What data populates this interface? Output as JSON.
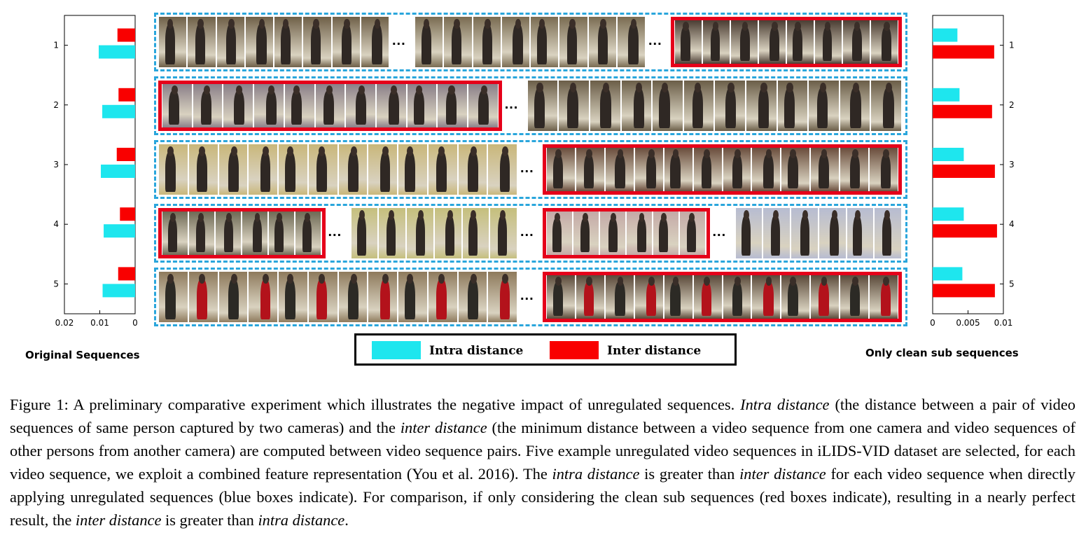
{
  "colors": {
    "intra": "#1ee6ee",
    "inter": "#f90000",
    "clean_box": "#e5001a",
    "sequence_box": "#2aa6dc"
  },
  "chart_data": [
    {
      "type": "bar",
      "orientation": "horizontal",
      "title": "Original Sequences",
      "xlim": [
        0.02,
        0
      ],
      "x_reversed": true,
      "xticks": [
        "0.02",
        "0.01",
        "0"
      ],
      "categories": [
        "1",
        "2",
        "3",
        "4",
        "5"
      ],
      "series": [
        {
          "name": "Inter distance",
          "values": [
            0.005,
            0.0047,
            0.0052,
            0.0043,
            0.0048
          ]
        },
        {
          "name": "Intra distance",
          "values": [
            0.0103,
            0.0093,
            0.0097,
            0.0089,
            0.0092
          ]
        }
      ],
      "grid": false
    },
    {
      "type": "bar",
      "orientation": "horizontal",
      "title": "Only clean sub sequences",
      "xlim": [
        0,
        0.01
      ],
      "xticks": [
        "0",
        "0.005",
        "0.01"
      ],
      "categories": [
        "1",
        "2",
        "3",
        "4",
        "5"
      ],
      "series": [
        {
          "name": "Intra distance",
          "values": [
            0.0035,
            0.0038,
            0.0044,
            0.0044,
            0.0042
          ]
        },
        {
          "name": "Inter distance",
          "values": [
            0.0087,
            0.0084,
            0.0088,
            0.0091,
            0.0088
          ]
        }
      ],
      "grid": false
    }
  ],
  "legend": {
    "intra_label": "Intra distance",
    "inter_label": "Inter distance"
  },
  "ellipsis": "...",
  "sequences": [
    {
      "segments": [
        {
          "clean": false,
          "frames": 8,
          "tone": "#6f6048"
        },
        {
          "clean": false,
          "frames": 8,
          "tone": "#7a6c52"
        },
        {
          "clean": true,
          "frames": 8,
          "tone": "#4b3d33"
        }
      ]
    },
    {
      "segments": [
        {
          "clean": true,
          "frames": 11,
          "tone": "#8a7f88"
        },
        {
          "clean": false,
          "frames": 12,
          "tone": "#6b5e48"
        }
      ]
    },
    {
      "segments": [
        {
          "clean": false,
          "frames": 12,
          "tone": "#c9b77a"
        },
        {
          "clean": true,
          "frames": 12,
          "tone": "#6a4d3c"
        }
      ]
    },
    {
      "segments": [
        {
          "clean": true,
          "frames": 6,
          "tone": "#6f6a55"
        },
        {
          "clean": false,
          "frames": 6,
          "tone": "#c5bf7c"
        },
        {
          "clean": true,
          "frames": 6,
          "tone": "#c4a9a6"
        },
        {
          "clean": false,
          "frames": 6,
          "tone": "#b7bcd1"
        }
      ]
    },
    {
      "segments": [
        {
          "clean": false,
          "frames": 12,
          "tone": "#8e7a5c"
        },
        {
          "clean": true,
          "frames": 12,
          "tone": "#5b4a3a"
        }
      ]
    }
  ],
  "caption": {
    "label": "Figure 1: A preliminary comparative experiment which illustrates the negative impact of unregulated sequences. ",
    "intra_1": "Intra distance",
    "t1": " (the distance between a pair of video sequences of same person captured by two cameras) and the ",
    "inter_1": "inter distance",
    "t2": " (the minimum distance between a video sequence from one camera and video sequences of other persons from another camera) are computed between video sequence pairs. Five example unregulated video sequences in iLIDS-VID dataset are selected, for each video sequence, we exploit a combined feature representation (You et al. 2016). The ",
    "intra_2": "intra distance",
    "t3": " is greater than ",
    "inter_2": "inter distance",
    "t4": " for each video sequence when directly applying unregulated sequences (blue boxes indicate). For comparison, if only considering the clean sub sequences (red boxes indicate), resulting in a nearly perfect result, the ",
    "inter_3": "inter distance",
    "t5": " is greater than ",
    "intra_3": "intra distance",
    "t6": "."
  }
}
